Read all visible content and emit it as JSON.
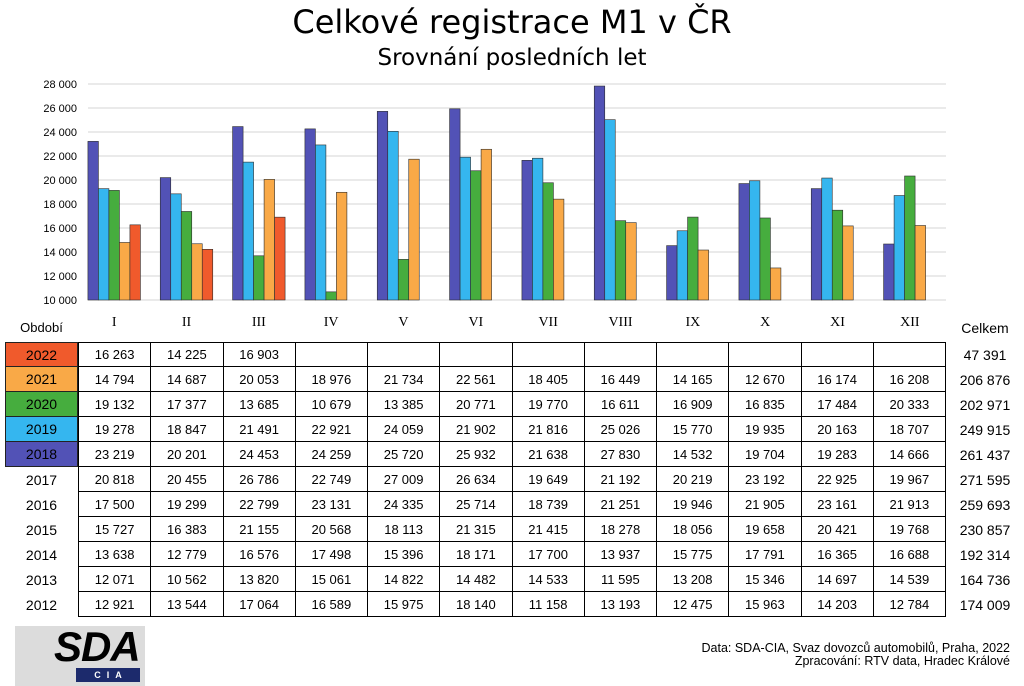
{
  "chart_data": {
    "type": "bar",
    "title": "Celkové registrace M1 v ČR",
    "subtitle": "Srovnání posledních let",
    "categories": [
      "I",
      "II",
      "III",
      "IV",
      "V",
      "VI",
      "VII",
      "VIII",
      "IX",
      "X",
      "XI",
      "XII"
    ],
    "ylim": [
      10000,
      28000
    ],
    "yticks": [
      10000,
      12000,
      14000,
      16000,
      18000,
      20000,
      22000,
      24000,
      26000,
      28000
    ],
    "ytick_labels": [
      "10 000",
      "12 000",
      "14 000",
      "16 000",
      "18 000",
      "20 000",
      "22 000",
      "24 000",
      "26 000",
      "28 000"
    ],
    "grid": true,
    "legend_position": "bottom-left",
    "series": [
      {
        "name": "2018",
        "color": "#5252b6",
        "values": [
          23219,
          20201,
          24453,
          24259,
          25720,
          25932,
          21638,
          27830,
          14532,
          19704,
          19283,
          14666
        ]
      },
      {
        "name": "2019",
        "color": "#35b6ef",
        "values": [
          19278,
          18847,
          21491,
          22921,
          24059,
          21902,
          21816,
          25026,
          15770,
          19935,
          20163,
          18707
        ]
      },
      {
        "name": "2020",
        "color": "#46ad3e",
        "values": [
          19132,
          17377,
          13685,
          10679,
          13385,
          20771,
          19770,
          16611,
          16909,
          16835,
          17484,
          20333
        ]
      },
      {
        "name": "2021",
        "color": "#f9a947",
        "values": [
          14794,
          14687,
          20053,
          18976,
          21734,
          22561,
          18405,
          16449,
          14165,
          12670,
          16174,
          16208
        ]
      },
      {
        "name": "2022",
        "color": "#f05a2c",
        "values": [
          16263,
          14225,
          16903,
          null,
          null,
          null,
          null,
          null,
          null,
          null,
          null,
          null
        ]
      }
    ]
  },
  "table": {
    "header_period": "Období",
    "header_total": "Celkem",
    "rows": [
      {
        "values": [
          "16 263",
          "14 225",
          "16 903",
          "",
          "",
          "",
          "",
          "",
          "",
          "",
          "",
          ""
        ],
        "total": "47 391"
      },
      {
        "values": [
          "14 794",
          "14 687",
          "20 053",
          "18 976",
          "21 734",
          "22 561",
          "18 405",
          "16 449",
          "14 165",
          "12 670",
          "16 174",
          "16 208"
        ],
        "total": "206 876"
      },
      {
        "values": [
          "19 132",
          "17 377",
          "13 685",
          "10 679",
          "13 385",
          "20 771",
          "19 770",
          "16 611",
          "16 909",
          "16 835",
          "17 484",
          "20 333"
        ],
        "total": "202 971"
      },
      {
        "values": [
          "19 278",
          "18 847",
          "21 491",
          "22 921",
          "24 059",
          "21 902",
          "21 816",
          "25 026",
          "15 770",
          "19 935",
          "20 163",
          "18 707"
        ],
        "total": "249 915"
      },
      {
        "values": [
          "23 219",
          "20 201",
          "24 453",
          "24 259",
          "25 720",
          "25 932",
          "21 638",
          "27 830",
          "14 532",
          "19 704",
          "19 283",
          "14 666"
        ],
        "total": "261 437"
      },
      {
        "year": "2017",
        "values": [
          "20 818",
          "20 455",
          "26 786",
          "22 749",
          "27 009",
          "26 634",
          "19 649",
          "21 192",
          "20 219",
          "23 192",
          "22 925",
          "19 967"
        ],
        "total": "271 595"
      },
      {
        "year": "2016",
        "values": [
          "17 500",
          "19 299",
          "22 799",
          "23 131",
          "24 335",
          "25 714",
          "18 739",
          "21 251",
          "19 946",
          "21 905",
          "23 161",
          "21 913"
        ],
        "total": "259 693"
      },
      {
        "year": "2015",
        "values": [
          "15 727",
          "16 383",
          "21 155",
          "20 568",
          "18 113",
          "21 315",
          "21 415",
          "18 278",
          "18 056",
          "19 658",
          "20 421",
          "19 768"
        ],
        "total": "230 857"
      },
      {
        "year": "2014",
        "values": [
          "13 638",
          "12 779",
          "16 576",
          "17 498",
          "15 396",
          "18 171",
          "17 700",
          "13 937",
          "15 775",
          "17 791",
          "16 365",
          "16 688"
        ],
        "total": "192 314"
      },
      {
        "year": "2013",
        "values": [
          "12 071",
          "10 562",
          "13 820",
          "15 061",
          "14 822",
          "14 482",
          "14 533",
          "11 595",
          "13 208",
          "15 346",
          "14 697",
          "14 539"
        ],
        "total": "164 736"
      },
      {
        "year": "2012",
        "values": [
          "12 921",
          "13 544",
          "17 064",
          "16 589",
          "15 975",
          "18 140",
          "11 158",
          "13 193",
          "12 475",
          "15 963",
          "14 203",
          "12 784"
        ],
        "total": "174 009"
      }
    ]
  },
  "logo": {
    "main": "SDA",
    "sub": "CIA"
  },
  "footer": {
    "source": "Data: SDA-CIA, Svaz dovozců automobilů, Praha, 2022",
    "processed": "Zpracování: RTV data, Hradec Králové"
  }
}
